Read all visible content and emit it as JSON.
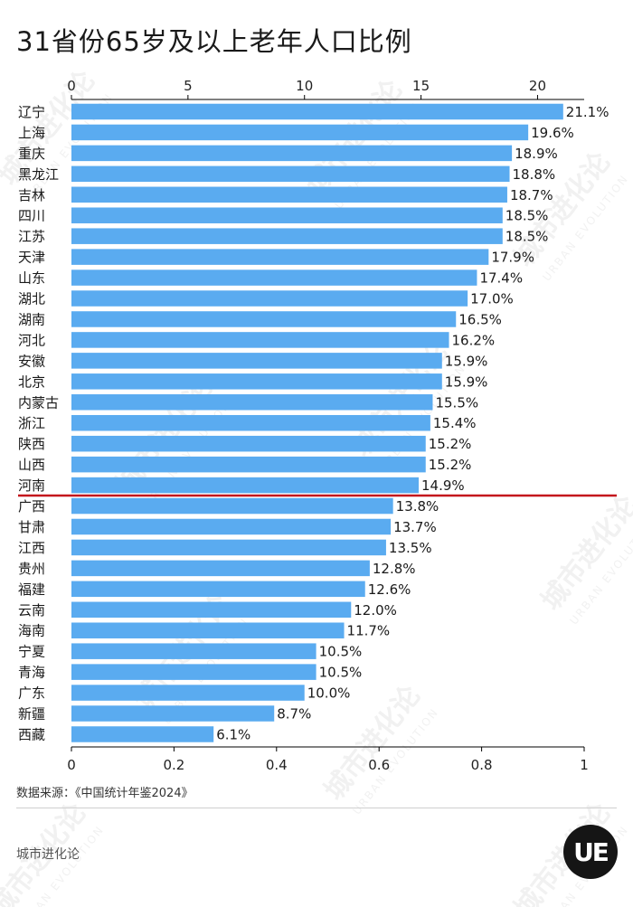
{
  "title": "31省份65岁及以上老年人口比例",
  "source": "数据来源：《中国统计年鉴2024》",
  "brand": "城市进化论",
  "watermark": {
    "cn": "城市进化论",
    "en": "URBAN EVOLUTION"
  },
  "logo": {
    "text": "UE"
  },
  "colors": {
    "bar": "#5aabf0",
    "reference_line": "#c4161c",
    "axis": "#000000"
  },
  "chart_data": {
    "type": "bar",
    "orientation": "horizontal",
    "value_format": "{v}%",
    "top_axis": {
      "ticks": [
        0,
        5,
        10,
        15,
        20
      ],
      "range": [
        0,
        22
      ]
    },
    "bottom_axis": {
      "ticks": [
        "0",
        "0.2",
        "0.4",
        "0.6",
        "0.8",
        "1"
      ],
      "range": [
        0,
        1
      ]
    },
    "reference_line_after": "河南",
    "categories": [
      "辽宁",
      "上海",
      "重庆",
      "黑龙江",
      "吉林",
      "四川",
      "江苏",
      "天津",
      "山东",
      "湖北",
      "湖南",
      "河北",
      "安徽",
      "北京",
      "内蒙古",
      "浙江",
      "陕西",
      "山西",
      "河南",
      "广西",
      "甘肃",
      "江西",
      "贵州",
      "福建",
      "云南",
      "海南",
      "宁夏",
      "青海",
      "广东",
      "新疆",
      "西藏"
    ],
    "values": [
      21.1,
      19.6,
      18.9,
      18.8,
      18.7,
      18.5,
      18.5,
      17.9,
      17.4,
      17.0,
      16.5,
      16.2,
      15.9,
      15.9,
      15.5,
      15.4,
      15.2,
      15.2,
      14.9,
      13.8,
      13.7,
      13.5,
      12.8,
      12.6,
      12.0,
      11.7,
      10.5,
      10.5,
      10.0,
      8.7,
      6.1
    ],
    "labels": [
      "21.1%",
      "19.6%",
      "18.9%",
      "18.8%",
      "18.7%",
      "18.5%",
      "18.5%",
      "17.9%",
      "17.4%",
      "17.0%",
      "16.5%",
      "16.2%",
      "15.9%",
      "15.9%",
      "15.5%",
      "15.4%",
      "15.2%",
      "15.2%",
      "14.9%",
      "13.8%",
      "13.7%",
      "13.5%",
      "12.8%",
      "12.6%",
      "12.0%",
      "11.7%",
      "10.5%",
      "10.5%",
      "10.0%",
      "8.7%",
      "6.1%"
    ]
  }
}
